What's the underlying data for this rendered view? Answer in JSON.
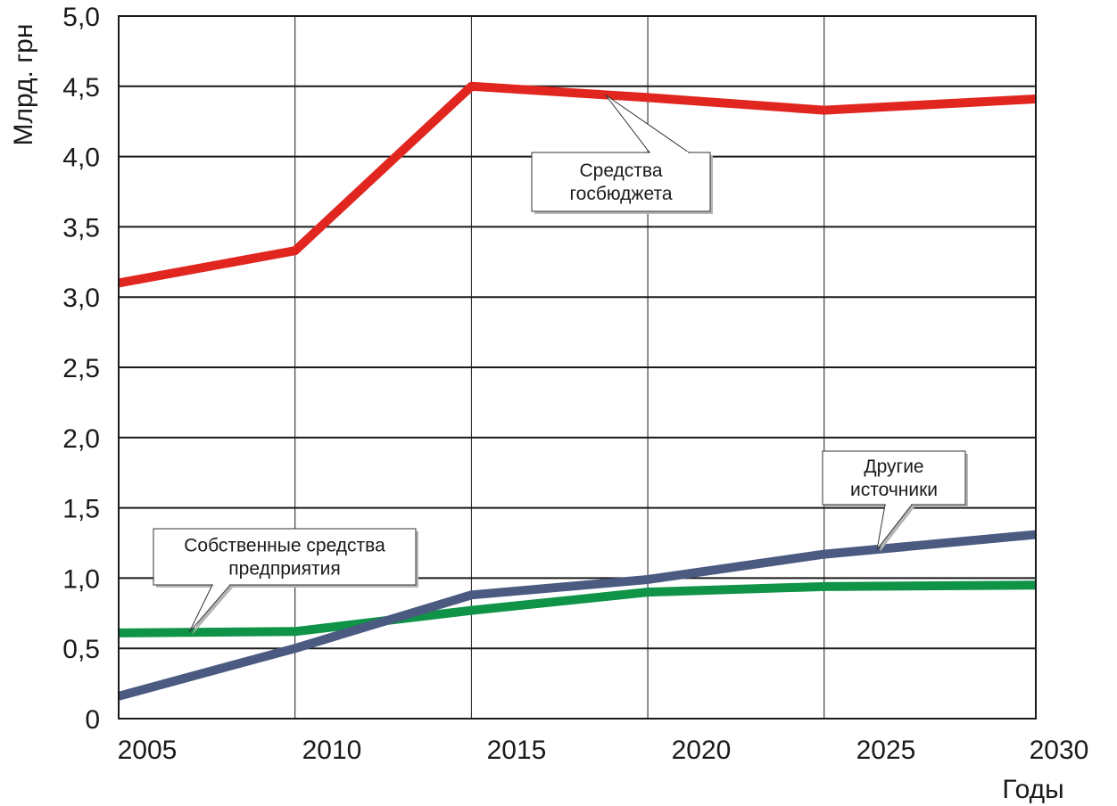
{
  "chart_data": {
    "type": "line",
    "title": "",
    "xlabel": "Годы",
    "ylabel": "Млрд. грн",
    "xlim": [
      2004,
      2030
    ],
    "ylim": [
      0,
      5.0
    ],
    "x_ticks": [
      2005,
      2010,
      2015,
      2020,
      2025,
      2030
    ],
    "x_tick_labels": [
      "2005",
      "2010",
      "2015",
      "2020",
      "2025",
      "2030"
    ],
    "y_ticks": [
      0,
      0.5,
      1.0,
      1.5,
      2.0,
      2.5,
      3.0,
      3.5,
      4.0,
      4.5,
      5.0
    ],
    "y_tick_labels": [
      "0",
      "0,5",
      "1,0",
      "1,5",
      "2,0",
      "2,5",
      "3,0",
      "3,5",
      "4,0",
      "4,5",
      "5,0"
    ],
    "grid": true,
    "x": [
      2004,
      2009,
      2014,
      2019,
      2024,
      2030
    ],
    "series": [
      {
        "key": "budget",
        "label_lines": [
          "Средства",
          "госбюджета"
        ],
        "color": "#e0261f",
        "values": [
          3.1,
          3.33,
          4.5,
          4.42,
          4.33,
          4.41
        ]
      },
      {
        "key": "own",
        "label_lines": [
          "Собственные средства",
          "предприятия"
        ],
        "color": "#0f9347",
        "values": [
          0.61,
          0.62,
          0.77,
          0.9,
          0.94,
          0.95
        ]
      },
      {
        "key": "other",
        "label_lines": [
          "Другие",
          "источники"
        ],
        "color": "#4a5a80",
        "values": [
          0.16,
          0.5,
          0.88,
          0.99,
          1.17,
          1.31
        ]
      }
    ],
    "annotations": [
      {
        "series": "budget",
        "text_lines": [
          "Средства",
          "госбюджета"
        ],
        "point_x": 2017.8
      },
      {
        "series": "own",
        "text_lines": [
          "Собственные средства",
          "предприятия"
        ],
        "point_x": 2006.0
      },
      {
        "series": "other",
        "text_lines": [
          "Другие",
          "источники"
        ],
        "point_x": 2025.5
      }
    ]
  }
}
